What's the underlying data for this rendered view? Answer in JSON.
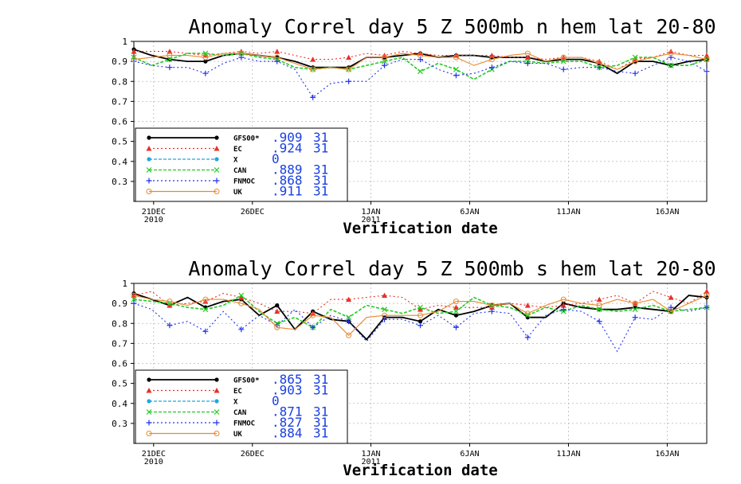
{
  "colors": {
    "GFS00": "#000000",
    "EC": "#e8302a",
    "X": "#1fa8e0",
    "CAN": "#22cc22",
    "FNMOC": "#2233ee",
    "UK": "#e88a30",
    "legend_values": "#1a3fe0",
    "grid": "#b8b8b8"
  },
  "chart_data": [
    {
      "type": "line",
      "title": "Anomaly Correl  day 5  Z 500mb  n hem  lat 20-80",
      "xlabel": "Verification date",
      "ylabel": "",
      "ylim": [
        0.2,
        1.0
      ],
      "y_ticks": [
        "1",
        "0.9",
        "0.8",
        "0.7",
        "0.6",
        "0.5",
        "0.4",
        "0.3"
      ],
      "y_tick_values": [
        1.0,
        0.9,
        0.8,
        0.7,
        0.6,
        0.5,
        0.4,
        0.3
      ],
      "xlim": [
        0,
        29
      ],
      "x_ticks": [
        {
          "x": 1,
          "label": "21DEC",
          "sub": "2010"
        },
        {
          "x": 6,
          "label": "26DEC",
          "sub": ""
        },
        {
          "x": 12,
          "label": "1JAN",
          "sub": "2011"
        },
        {
          "x": 17,
          "label": "6JAN",
          "sub": ""
        },
        {
          "x": 22,
          "label": "11JAN",
          "sub": ""
        },
        {
          "x": 27,
          "label": "16JAN",
          "sub": ""
        }
      ],
      "grid": true,
      "legend_position": "bottom-left",
      "series": [
        {
          "name": "GFS00*",
          "score": ".909",
          "count": "31",
          "marker": "dot",
          "dash": "solid",
          "values": [
            0.96,
            0.93,
            0.91,
            0.9,
            0.9,
            0.93,
            0.94,
            0.93,
            0.92,
            0.9,
            0.87,
            0.87,
            0.87,
            0.92,
            0.92,
            0.93,
            0.94,
            0.92,
            0.93,
            0.93,
            0.92,
            0.92,
            0.92,
            0.9,
            0.91,
            0.91,
            0.89,
            0.84,
            0.9,
            0.9,
            0.88,
            0.9,
            0.91
          ]
        },
        {
          "name": "EC",
          "score": ".924",
          "count": "31",
          "marker": "triangle",
          "dash": "dot",
          "values": [
            0.95,
            0.95,
            0.95,
            0.94,
            0.93,
            0.94,
            0.95,
            0.94,
            0.95,
            0.93,
            0.91,
            0.91,
            0.92,
            0.94,
            0.93,
            0.95,
            0.94,
            0.93,
            0.93,
            0.93,
            0.93,
            0.92,
            0.92,
            0.91,
            0.92,
            0.92,
            0.9,
            0.86,
            0.91,
            0.92,
            0.95,
            0.93,
            0.93
          ]
        },
        {
          "name": "X",
          "score": "0",
          "count": "",
          "marker": "dot",
          "dash": "dash",
          "values": []
        },
        {
          "name": "CAN",
          "score": ".889",
          "count": "31",
          "marker": "cross",
          "dash": "dash",
          "values": [
            0.92,
            0.88,
            0.91,
            0.94,
            0.94,
            0.93,
            0.94,
            0.92,
            0.91,
            0.87,
            0.86,
            0.87,
            0.86,
            0.88,
            0.9,
            0.92,
            0.85,
            0.89,
            0.86,
            0.81,
            0.86,
            0.9,
            0.9,
            0.89,
            0.9,
            0.9,
            0.87,
            0.88,
            0.92,
            0.92,
            0.88,
            0.88,
            0.91
          ]
        },
        {
          "name": "FNMOC",
          "score": ".868",
          "count": "31",
          "marker": "plus",
          "dash": "dot",
          "values": [
            0.9,
            0.88,
            0.87,
            0.87,
            0.84,
            0.89,
            0.92,
            0.9,
            0.9,
            0.86,
            0.72,
            0.79,
            0.8,
            0.8,
            0.88,
            0.91,
            0.91,
            0.86,
            0.83,
            0.84,
            0.87,
            0.9,
            0.89,
            0.89,
            0.86,
            0.87,
            0.87,
            0.85,
            0.84,
            0.88,
            0.92,
            0.9,
            0.85
          ]
        },
        {
          "name": "UK",
          "score": ".911",
          "count": "31",
          "marker": "circle",
          "dash": "solid",
          "values": [
            0.91,
            0.92,
            0.93,
            0.93,
            0.92,
            0.94,
            0.94,
            0.93,
            0.92,
            0.89,
            0.86,
            0.87,
            0.86,
            0.92,
            0.92,
            0.94,
            0.93,
            0.92,
            0.92,
            0.88,
            0.91,
            0.93,
            0.94,
            0.9,
            0.92,
            0.92,
            0.89,
            0.86,
            0.9,
            0.92,
            0.94,
            0.93,
            0.91
          ]
        }
      ]
    },
    {
      "type": "line",
      "title": "Anomaly Correl  day 5  Z 500mb  s hem  lat 20-80",
      "xlabel": "Verification date",
      "ylabel": "",
      "ylim": [
        0.2,
        1.0
      ],
      "y_ticks": [
        "1",
        "0.9",
        "0.8",
        "0.7",
        "0.6",
        "0.5",
        "0.4",
        "0.3"
      ],
      "y_tick_values": [
        1.0,
        0.9,
        0.8,
        0.7,
        0.6,
        0.5,
        0.4,
        0.3
      ],
      "xlim": [
        0,
        29
      ],
      "x_ticks": [
        {
          "x": 1,
          "label": "21DEC",
          "sub": "2010"
        },
        {
          "x": 6,
          "label": "26DEC",
          "sub": ""
        },
        {
          "x": 12,
          "label": "1JAN",
          "sub": "2011"
        },
        {
          "x": 17,
          "label": "6JAN",
          "sub": ""
        },
        {
          "x": 22,
          "label": "11JAN",
          "sub": ""
        },
        {
          "x": 27,
          "label": "16JAN",
          "sub": ""
        }
      ],
      "grid": true,
      "legend_position": "bottom-left",
      "series": [
        {
          "name": "GFS00*",
          "score": ".865",
          "count": "31",
          "marker": "dot",
          "dash": "solid",
          "values": [
            0.95,
            0.92,
            0.89,
            0.93,
            0.88,
            0.91,
            0.92,
            0.84,
            0.89,
            0.77,
            0.86,
            0.82,
            0.81,
            0.72,
            0.83,
            0.83,
            0.81,
            0.87,
            0.84,
            0.86,
            0.89,
            0.9,
            0.83,
            0.83,
            0.9,
            0.88,
            0.87,
            0.87,
            0.88,
            0.87,
            0.86,
            0.94,
            0.93
          ]
        },
        {
          "name": "EC",
          "score": ".903",
          "count": "31",
          "marker": "triangle",
          "dash": "dot",
          "values": [
            0.94,
            0.96,
            0.89,
            0.9,
            0.91,
            0.95,
            0.93,
            0.9,
            0.86,
            0.86,
            0.85,
            0.92,
            0.92,
            0.93,
            0.94,
            0.93,
            0.87,
            0.89,
            0.88,
            0.88,
            0.88,
            0.9,
            0.89,
            0.88,
            0.89,
            0.9,
            0.92,
            0.94,
            0.9,
            0.96,
            0.93,
            0.9,
            0.96
          ]
        },
        {
          "name": "X",
          "score": "0",
          "count": "",
          "marker": "dot",
          "dash": "dash",
          "values": []
        },
        {
          "name": "CAN",
          "score": ".871",
          "count": "31",
          "marker": "cross",
          "dash": "dash",
          "values": [
            0.92,
            0.91,
            0.9,
            0.88,
            0.87,
            0.89,
            0.94,
            0.86,
            0.8,
            0.83,
            0.78,
            0.87,
            0.83,
            0.89,
            0.87,
            0.85,
            0.88,
            0.85,
            0.86,
            0.93,
            0.89,
            0.88,
            0.84,
            0.88,
            0.86,
            0.89,
            0.87,
            0.86,
            0.87,
            0.89,
            0.86,
            0.87,
            0.88
          ]
        },
        {
          "name": "FNMOC",
          "score": ".827",
          "count": "31",
          "marker": "plus",
          "dash": "dot",
          "values": [
            0.9,
            0.87,
            0.79,
            0.81,
            0.76,
            0.86,
            0.77,
            0.84,
            0.79,
            0.87,
            0.78,
            0.84,
            0.81,
            0.71,
            0.82,
            0.82,
            0.79,
            0.84,
            0.78,
            0.85,
            0.86,
            0.85,
            0.73,
            0.84,
            0.87,
            0.86,
            0.81,
            0.66,
            0.83,
            0.82,
            0.88,
            0.86,
            0.88
          ]
        },
        {
          "name": "UK",
          "score": ".884",
          "count": "31",
          "marker": "circle",
          "dash": "solid",
          "values": [
            0.94,
            0.92,
            0.91,
            0.89,
            0.92,
            0.92,
            0.9,
            0.87,
            0.78,
            0.77,
            0.84,
            0.83,
            0.74,
            0.83,
            0.84,
            0.84,
            0.84,
            0.86,
            0.91,
            0.91,
            0.89,
            0.9,
            0.85,
            0.89,
            0.92,
            0.9,
            0.89,
            0.92,
            0.9,
            0.92,
            0.86,
            0.9,
            0.94
          ]
        }
      ]
    }
  ]
}
